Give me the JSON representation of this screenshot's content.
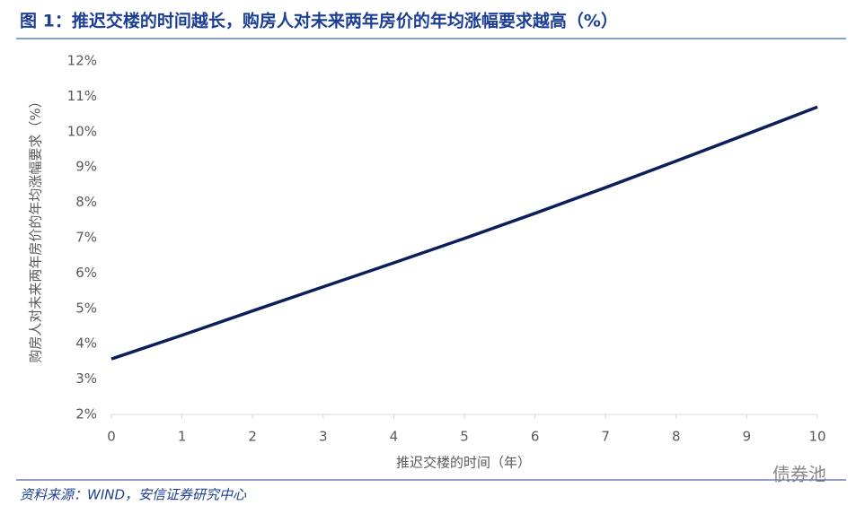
{
  "chart_data": {
    "type": "line",
    "title": "图 1：推迟交楼的时间越长，购房人对未来两年房价的年均涨幅要求越高（%）",
    "x_label": "推迟交楼的时间（年）",
    "y_label": "购房人对未来两年房价的年均涨幅要求（%）",
    "source": "资料来源：WIND，安信证券研究中心",
    "watermark": "债券池",
    "x": [
      0,
      1,
      2,
      3,
      4,
      5,
      6,
      7,
      8,
      9,
      10
    ],
    "series": [
      {
        "color": "#0c1f5c",
        "values": [
          3.57,
          4.24,
          4.93,
          5.61,
          6.29,
          6.98,
          7.69,
          8.42,
          9.17,
          9.93,
          10.7
        ]
      }
    ],
    "xlim": [
      0,
      10
    ],
    "xticks": [
      0,
      1,
      2,
      3,
      4,
      5,
      6,
      7,
      8,
      9,
      10
    ],
    "ylim": [
      2,
      12
    ],
    "yticks": [
      {
        "value": 2,
        "label": "2%"
      },
      {
        "value": 3,
        "label": "3%"
      },
      {
        "value": 4,
        "label": "4%"
      },
      {
        "value": 5,
        "label": "5%"
      },
      {
        "value": 6,
        "label": "6%"
      },
      {
        "value": 7,
        "label": "7%"
      },
      {
        "value": 8,
        "label": "8%"
      },
      {
        "value": 9,
        "label": "9%"
      },
      {
        "value": 10,
        "label": "10%"
      },
      {
        "value": 11,
        "label": "11%"
      },
      {
        "value": 12,
        "label": "12%"
      }
    ],
    "grid": false
  }
}
